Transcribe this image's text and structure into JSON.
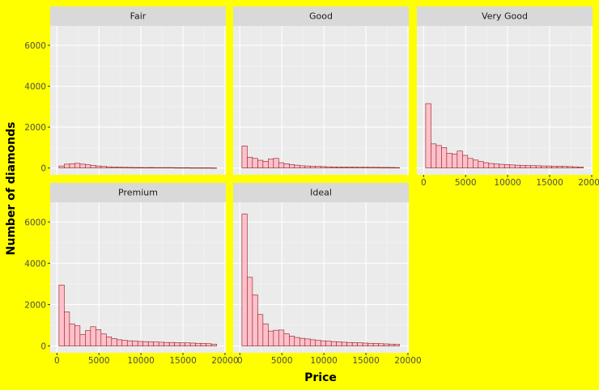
{
  "chart_data": {
    "type": "bar",
    "subtype": "faceted-histogram",
    "xlabel": "Price",
    "ylabel": "Number of diamonds",
    "xlim": [
      -800,
      20100
    ],
    "ylim": [
      -330,
      6950
    ],
    "x_ticks": [
      0,
      5000,
      10000,
      15000,
      20000
    ],
    "y_ticks": [
      0,
      2000,
      4000,
      6000
    ],
    "bin_start": 250,
    "bin_width": 625,
    "bin_count": 30,
    "colors": {
      "background": "#ffff00",
      "panel": "#ebebeb",
      "strip": "#d9d9d9",
      "bar_fill": "#ffc0cb",
      "bar_stroke": "#8b1a1a",
      "grid_major": "#ffffff"
    },
    "facets": [
      {
        "name": "Fair",
        "values": [
          100,
          190,
          210,
          230,
          190,
          160,
          130,
          100,
          80,
          60,
          50,
          40,
          35,
          30,
          25,
          25,
          20,
          25,
          20,
          20,
          20,
          20,
          15,
          15,
          15,
          10,
          10,
          10,
          10,
          5
        ]
      },
      {
        "name": "Good",
        "values": [
          1080,
          530,
          470,
          380,
          330,
          440,
          470,
          260,
          210,
          170,
          140,
          110,
          100,
          90,
          80,
          70,
          60,
          55,
          55,
          50,
          50,
          45,
          40,
          40,
          35,
          35,
          30,
          30,
          25,
          20
        ]
      },
      {
        "name": "Very Good",
        "values": [
          3150,
          1180,
          1100,
          1000,
          720,
          690,
          830,
          620,
          470,
          390,
          320,
          260,
          220,
          200,
          180,
          170,
          150,
          140,
          130,
          120,
          115,
          110,
          100,
          100,
          90,
          90,
          80,
          70,
          60,
          50
        ]
      },
      {
        "name": "Premium",
        "values": [
          2950,
          1650,
          1070,
          980,
          560,
          740,
          930,
          790,
          580,
          440,
          360,
          300,
          270,
          250,
          230,
          220,
          210,
          200,
          190,
          180,
          170,
          170,
          160,
          150,
          150,
          140,
          130,
          120,
          110,
          90
        ]
      },
      {
        "name": "Ideal",
        "values": [
          6380,
          3320,
          2470,
          1520,
          1070,
          720,
          760,
          770,
          590,
          480,
          410,
          370,
          340,
          300,
          270,
          250,
          230,
          210,
          200,
          180,
          170,
          160,
          150,
          140,
          130,
          120,
          110,
          100,
          90,
          80
        ]
      }
    ]
  }
}
